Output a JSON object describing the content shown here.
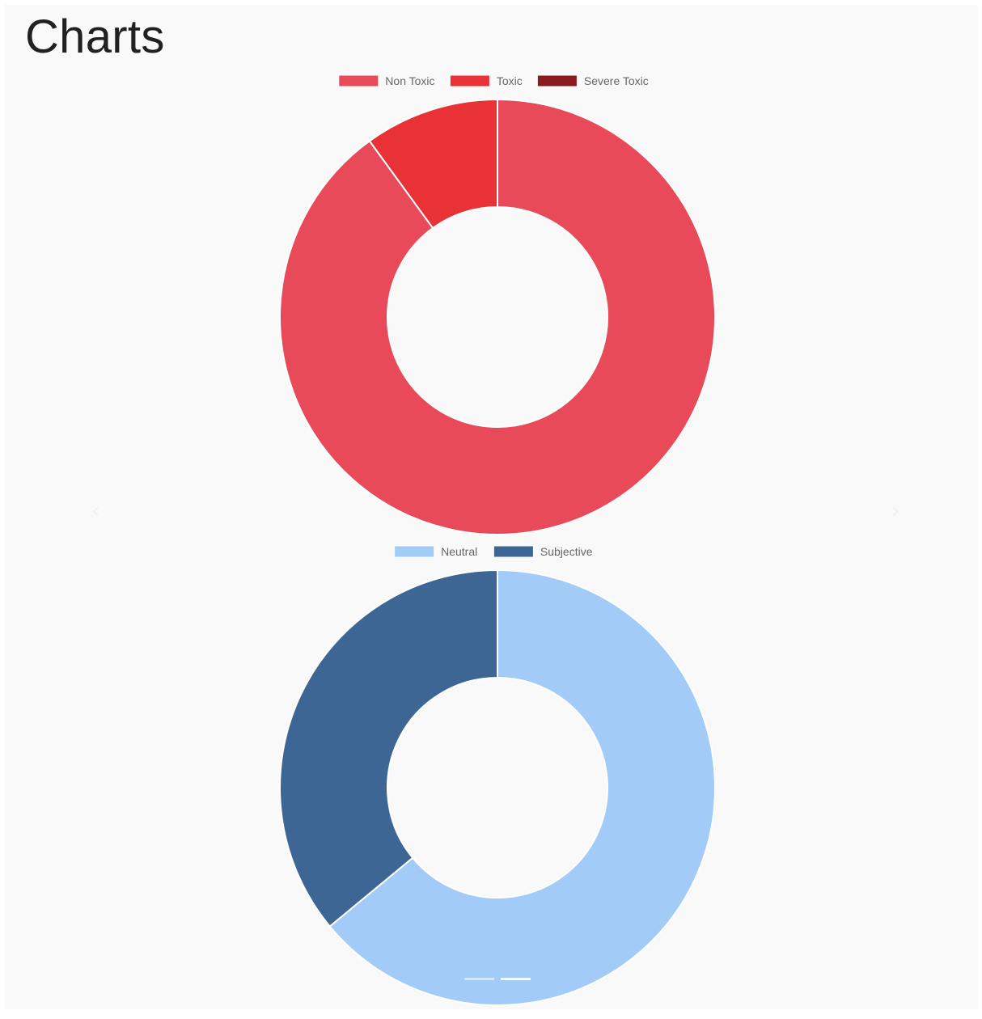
{
  "page": {
    "title": "Charts"
  },
  "carousel": {
    "prev_icon": "chevron-left-icon",
    "next_icon": "chevron-right-icon",
    "indicators": [
      {
        "active": false
      },
      {
        "active": true
      }
    ]
  },
  "chart_data": [
    {
      "type": "pie",
      "variant": "doughnut",
      "labels": [
        "Non Toxic",
        "Toxic",
        "Severe Toxic"
      ],
      "values": [
        90,
        10,
        0
      ],
      "colors": [
        "#e84a5a",
        "#e83235",
        "#8b1a1e"
      ],
      "legend": "top"
    },
    {
      "type": "pie",
      "variant": "doughnut",
      "labels": [
        "Neutral",
        "Subjective"
      ],
      "values": [
        64,
        36
      ],
      "colors": [
        "#a3cbf8",
        "#3e6694"
      ],
      "legend": "top"
    }
  ]
}
